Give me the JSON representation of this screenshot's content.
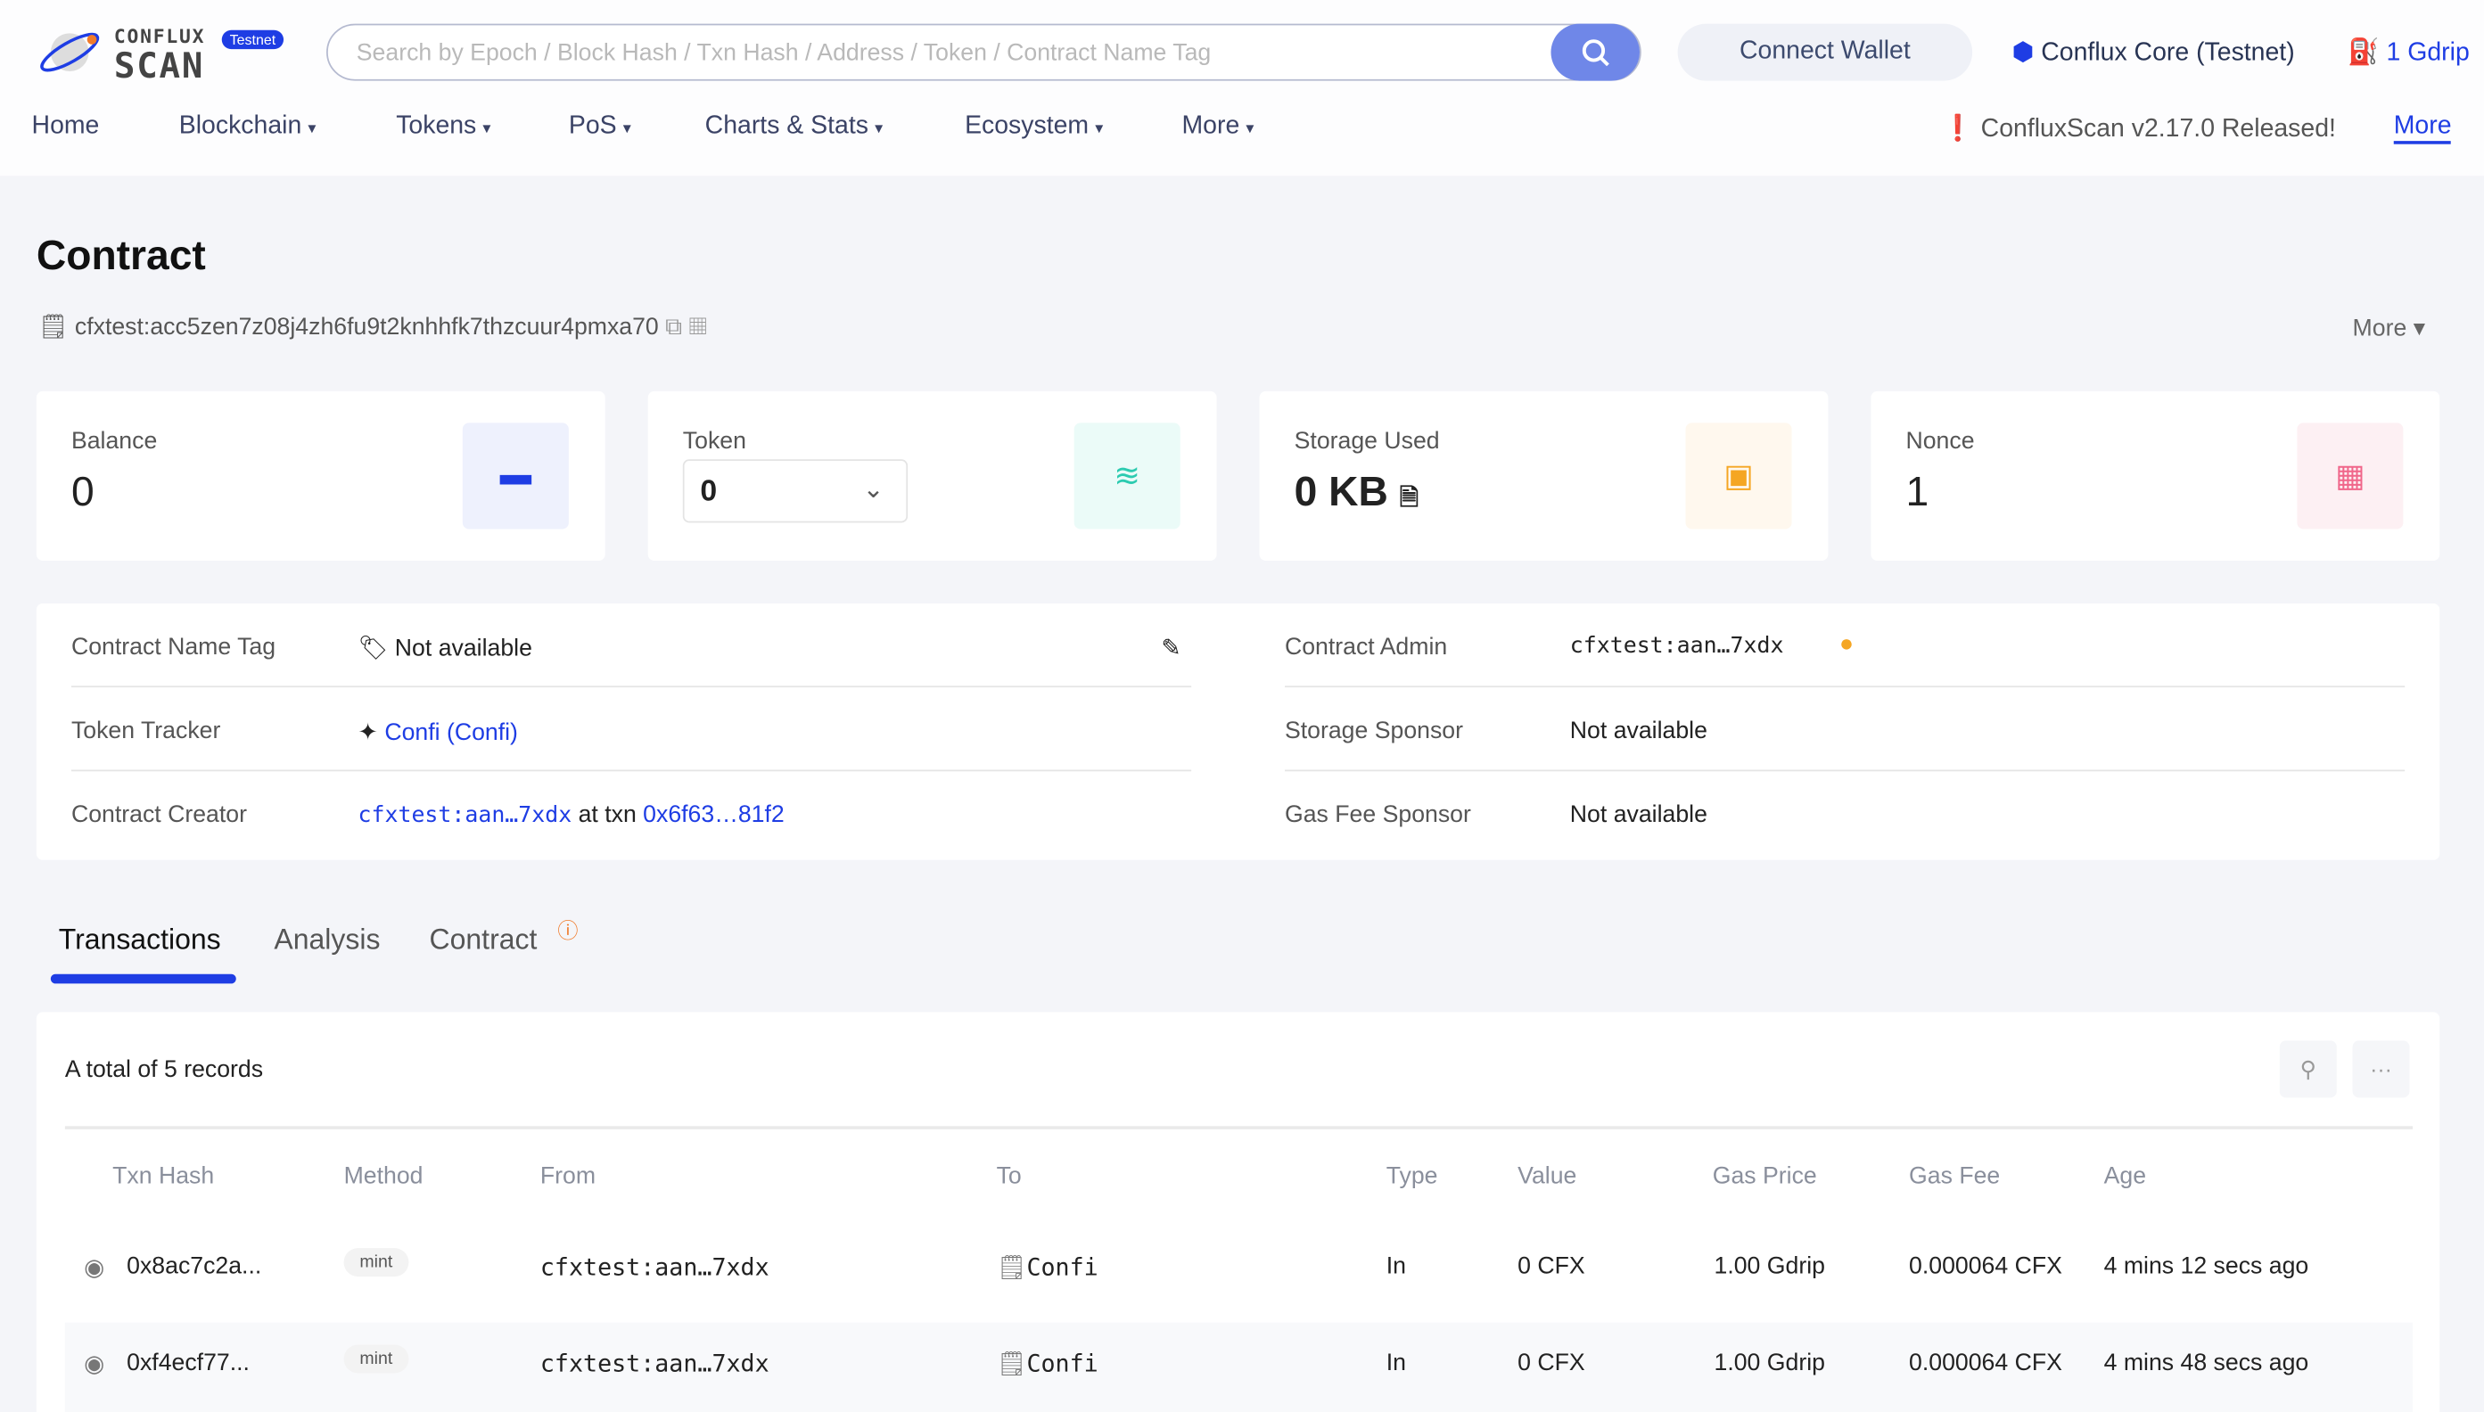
{
  "header": {
    "logo_text": "CONFLUX SCAN",
    "network_badge": "Testnet",
    "search_placeholder": "Search by Epoch / Block Hash / Txn Hash / Address / Token / Contract Name Tag",
    "connect_wallet": "Connect Wallet",
    "network": "Conflux Core (Testnet)",
    "gas_price": "1 Gdrip"
  },
  "nav": {
    "items": [
      "Home",
      "Blockchain",
      "Tokens",
      "PoS",
      "Charts & Stats",
      "Ecosystem",
      "More"
    ],
    "announcement": "ConfluxScan v2.17.0 Released!",
    "announcement_more": "More"
  },
  "page": {
    "title": "Contract",
    "address": "cfxtest:acc5zen7z08j4zh6fu9t2knhhfk7thzcuur4pmxa70",
    "more": "More"
  },
  "cards": {
    "balance_label": "Balance",
    "balance": "0",
    "token_label": "Token",
    "token": "0",
    "storage_label": "Storage Used",
    "storage": "0 KB",
    "nonce_label": "Nonce",
    "nonce": "1"
  },
  "info": {
    "name_tag_label": "Contract Name Tag",
    "name_tag": "Not available",
    "token_tracker_label": "Token Tracker",
    "token_tracker": "Confi (Confi)",
    "creator_label": "Contract Creator",
    "creator": "cfxtest:aan…7xdx",
    "at_txn": "at txn",
    "creator_txn": "0x6f63…81f2",
    "admin_label": "Contract Admin",
    "admin": "cfxtest:aan…7xdx",
    "storage_sponsor_label": "Storage Sponsor",
    "storage_sponsor": "Not available",
    "gas_sponsor_label": "Gas Fee Sponsor",
    "gas_sponsor": "Not available"
  },
  "tabs": [
    "Transactions",
    "Analysis",
    "Contract"
  ],
  "table": {
    "total": "A total of 5 records",
    "columns": [
      "Txn Hash",
      "Method",
      "From",
      "To",
      "Type",
      "Value",
      "Gas Price",
      "Gas Fee",
      "Age"
    ],
    "rows": [
      {
        "hash": "0x8ac7c2a...",
        "method": "mint",
        "from": "cfxtest:aan…7xdx",
        "to": "Confi",
        "type": "In",
        "value": "0 CFX",
        "gas_price": "1.00 Gdrip",
        "gas_fee": "0.000064 CFX",
        "age": "4 mins 12 secs ago"
      },
      {
        "hash": "0xf4ecf77...",
        "method": "mint",
        "from": "cfxtest:aan…7xdx",
        "to": "Confi",
        "type": "In",
        "value": "0 CFX",
        "gas_price": "1.00 Gdrip",
        "gas_fee": "0.000064 CFX",
        "age": "4 mins 48 secs ago"
      }
    ]
  },
  "colors": {
    "accent": "#1e3de4",
    "background": "#f4f5f9"
  }
}
